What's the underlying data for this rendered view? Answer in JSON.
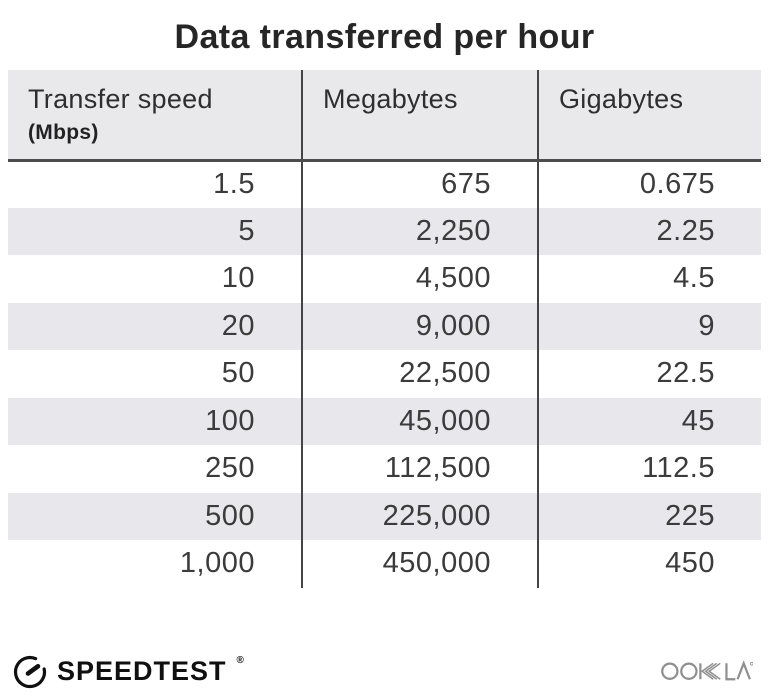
{
  "title": "Data transferred per hour",
  "table": {
    "headers": [
      {
        "label": "Transfer speed",
        "sub": "(Mbps)"
      },
      {
        "label": "Megabytes"
      },
      {
        "label": "Gigabytes"
      }
    ],
    "rows": [
      [
        "1.5",
        "675",
        "0.675"
      ],
      [
        "5",
        "2,250",
        "2.25"
      ],
      [
        "10",
        "4,500",
        "4.5"
      ],
      [
        "20",
        "9,000",
        "9"
      ],
      [
        "50",
        "22,500",
        "22.5"
      ],
      [
        "100",
        "45,000",
        "45"
      ],
      [
        "250",
        "112,500",
        "112.5"
      ],
      [
        "500",
        "225,000",
        "225"
      ],
      [
        "1,000",
        "450,000",
        "450"
      ]
    ]
  },
  "footer": {
    "brand": "SPEEDTEST",
    "brand_mark": "®",
    "partner": "OOKLA",
    "partner_mark": "®"
  },
  "colors": {
    "header_bg": "#e9e9ec",
    "stripe_bg": "#e8e8ec",
    "divider": "#454545",
    "header_border": "#4d4d4d",
    "title_text": "#262626",
    "body_text": "#3b3b3b",
    "speedtest_black": "#101010",
    "ookla_gray": "#8f8f8f"
  },
  "chart_data": {
    "type": "table",
    "title": "Data transferred per hour",
    "columns": [
      "Transfer speed (Mbps)",
      "Megabytes",
      "Gigabytes"
    ],
    "rows": [
      [
        1.5,
        675,
        0.675
      ],
      [
        5,
        2250,
        2.25
      ],
      [
        10,
        4500,
        4.5
      ],
      [
        20,
        9000,
        9
      ],
      [
        50,
        22500,
        22.5
      ],
      [
        100,
        45000,
        45
      ],
      [
        250,
        112500,
        112.5
      ],
      [
        500,
        225000,
        225
      ],
      [
        1000,
        450000,
        450
      ]
    ]
  }
}
